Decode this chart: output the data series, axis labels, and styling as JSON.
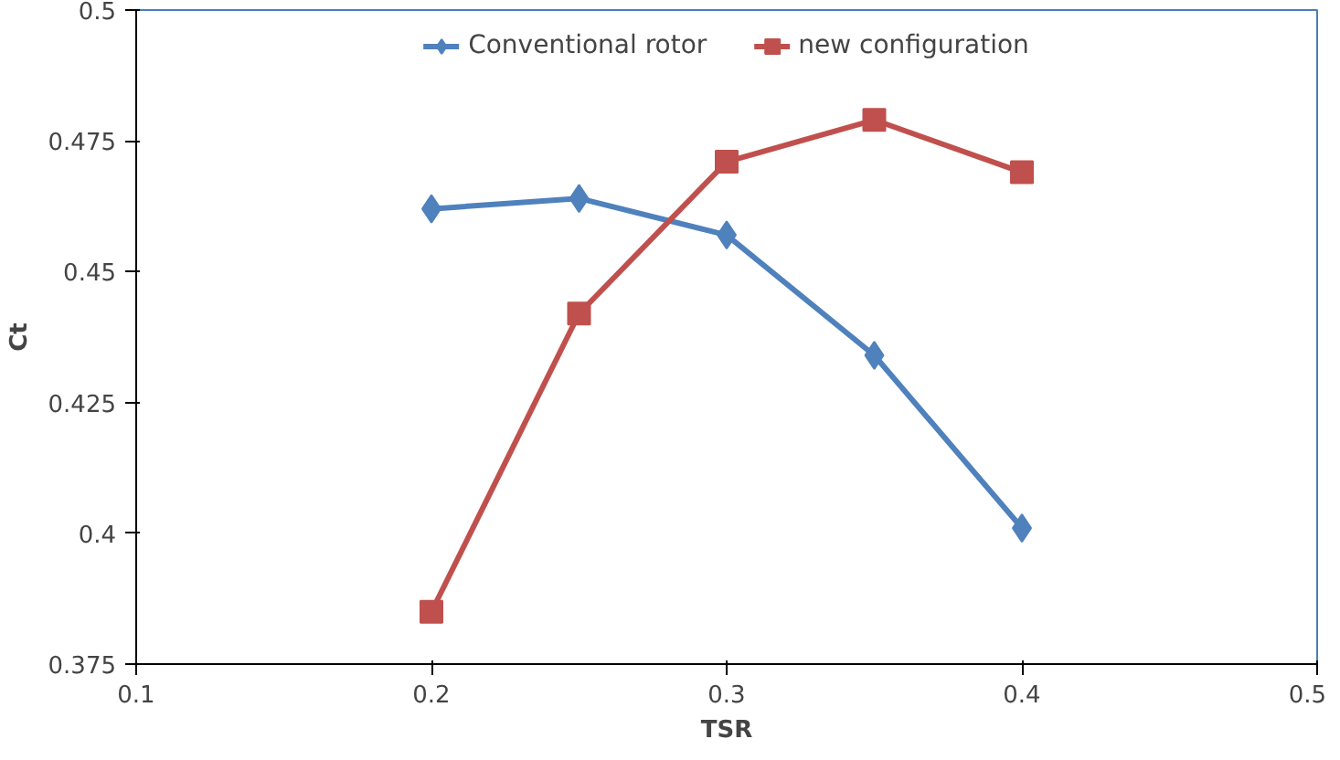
{
  "chart_data": {
    "type": "line",
    "xlabel": "TSR",
    "ylabel": "Ct",
    "x": [
      0.2,
      0.25,
      0.3,
      0.35,
      0.4
    ],
    "series": [
      {
        "name": "Conventional rotor",
        "color": "#4f81bd",
        "marker": "diamond",
        "values": [
          0.462,
          0.464,
          0.457,
          0.434,
          0.401
        ]
      },
      {
        "name": "new configuration",
        "color": "#c0504d",
        "marker": "square",
        "values": [
          0.385,
          0.442,
          0.471,
          0.479,
          0.469
        ]
      }
    ],
    "xlim": [
      0.1,
      0.5
    ],
    "xticks": [
      0.1,
      0.2,
      0.3,
      0.4,
      0.5
    ],
    "ylim": [
      0.375,
      0.5
    ],
    "yticks": [
      0.375,
      0.4,
      0.425,
      0.45,
      0.475,
      0.5
    ],
    "grid": false,
    "legend": "top",
    "line_style": "solid"
  }
}
